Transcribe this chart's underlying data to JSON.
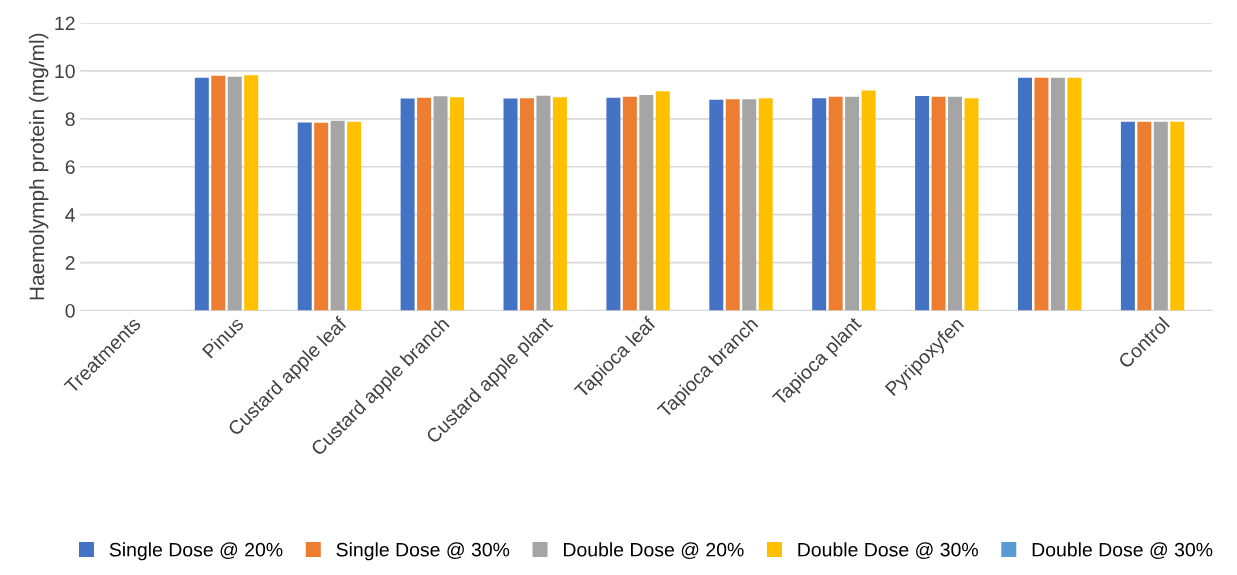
{
  "chart_data": {
    "type": "bar",
    "ylabel": "Haemolymph protein (mg/ml)",
    "categories": [
      "Treatments",
      "Pinus",
      "Custard apple leaf",
      "Custard apple branch",
      "Custard apple plant",
      "Tapioca leaf",
      "Tapioca branch",
      "Tapioca plant",
      "Pyripoxyfen",
      null,
      "Control"
    ],
    "series": [
      {
        "name": "Single Dose @ 20%",
        "color": "#4472c4",
        "values": [
          null,
          9.72,
          7.85,
          8.85,
          8.85,
          8.88,
          8.8,
          8.86,
          8.95,
          9.72,
          7.88
        ]
      },
      {
        "name": "Single Dose @ 30%",
        "color": "#ed7d31",
        "values": [
          null,
          9.8,
          7.84,
          8.88,
          8.86,
          8.92,
          8.82,
          8.92,
          8.92,
          9.72,
          7.88
        ]
      },
      {
        "name": "Double Dose @ 20%",
        "color": "#a5a5a5",
        "values": [
          null,
          9.76,
          7.92,
          8.94,
          8.96,
          9.0,
          8.82,
          8.92,
          8.92,
          9.72,
          7.88
        ]
      },
      {
        "name": "Double Dose @ 30%",
        "color": "#ffc000",
        "values": [
          null,
          9.82,
          7.88,
          8.9,
          8.9,
          9.15,
          8.86,
          9.18,
          8.86,
          9.72,
          7.88
        ]
      },
      {
        "name": "Double Dose @ 30%",
        "color": "#5b9bd5",
        "values": [
          null,
          null,
          null,
          null,
          null,
          null,
          null,
          null,
          null,
          null,
          null
        ]
      }
    ],
    "ylim": [
      0,
      12
    ],
    "yticks": [
      0,
      2,
      4,
      6,
      8,
      10,
      12
    ],
    "grid": "y",
    "legend": "bottom"
  }
}
